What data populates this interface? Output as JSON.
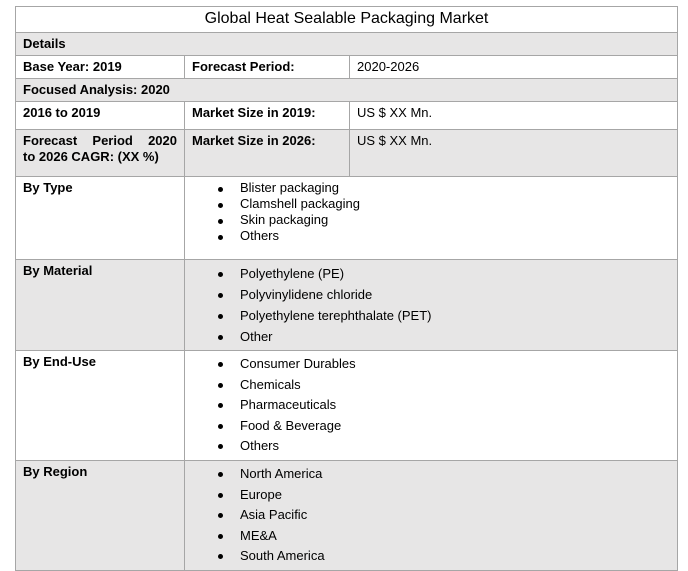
{
  "title": "Global Heat Sealable Packaging Market",
  "details_label": "Details",
  "base_year": "Base Year: 2019",
  "forecast_period_label": "Forecast Period:",
  "forecast_period_value": "2020-2026",
  "focused_analysis": "Focused Analysis: 2020",
  "historic_label": "2016 to 2019",
  "market_size_2019_label": "Market Size in 2019:",
  "market_size_2019_value": "US $ XX Mn.",
  "cagr_line1": "Forecast Period 2020",
  "cagr_line2": "to 2026 CAGR: (XX %)",
  "market_size_2026_label": "Market Size in 2026:",
  "market_size_2026_value": "US $ XX Mn.",
  "segments": [
    {
      "label": "By Type",
      "items": [
        "Blister packaging",
        "Clamshell packaging",
        "Skin packaging",
        "Others"
      ]
    },
    {
      "label": "By Material",
      "items": [
        "Polyethylene (PE)",
        "Polyvinylidene chloride",
        "Polyethylene terephthalate (PET)",
        "Other"
      ]
    },
    {
      "label": "By End-Use",
      "items": [
        "Consumer Durables",
        "Chemicals",
        "Pharmaceuticals",
        "Food & Beverage",
        "Others"
      ]
    },
    {
      "label": "By Region",
      "items": [
        "North America",
        "Europe",
        "Asia Pacific",
        "ME&A",
        "South America"
      ]
    }
  ],
  "colors": {
    "shade": "#e7e6e6",
    "border": "#a6a6a6"
  }
}
